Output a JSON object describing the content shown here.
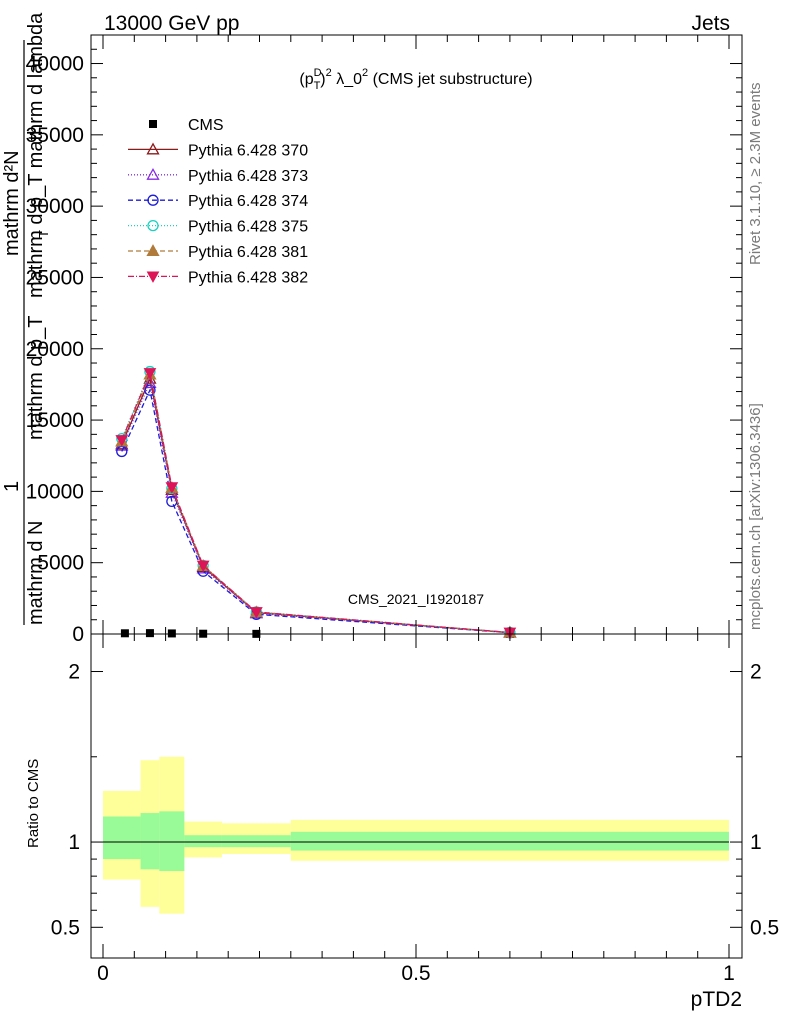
{
  "header": {
    "left": "13000 GeV pp",
    "right": "Jets"
  },
  "side_text": {
    "top": "Rivet 3.1.10, ≥ 2.3M events",
    "bottom": "mcplots.cern.ch [arXiv:1306.3436]"
  },
  "watermark": "CMS_2021_I1920187",
  "chart_data": [
    {
      "type": "line",
      "title": "(p_T^D)^2 λ_0^2 (CMS jet substructure)",
      "title_parts": {
        "a": "(p",
        "sup1": "D",
        "sub1": "T",
        "b": ")",
        "sup2": "2",
        "c": " λ_0",
        "sup3": "2",
        "d": " (CMS jet substructure)"
      },
      "ylabel_lines": [
        "1",
        "mathrm d N",
        "mathrm d p_T"
      ],
      "ylabel_numerator": "mathrm d²N",
      "ylabel_denominator": "mathrm d p_T mathrm d lambda",
      "ylabel_under": "T",
      "xlim": [
        0,
        1
      ],
      "ylim": [
        0,
        42000
      ],
      "yticks": [
        0,
        5000,
        10000,
        15000,
        20000,
        25000,
        30000,
        35000,
        40000
      ],
      "ytick_labels": [
        "0",
        "5000",
        "10000",
        "15000",
        "20000",
        "25000",
        "30000",
        "35000",
        "40000"
      ],
      "grid": false,
      "legend_position": "top-left",
      "series": [
        {
          "name": "CMS",
          "color": "#000000",
          "marker": "square",
          "dash": "none",
          "x": [
            0.035,
            0.075,
            0.11,
            0.16,
            0.245,
            0.65
          ],
          "y": [
            50,
            60,
            40,
            20,
            10,
            1
          ]
        },
        {
          "name": "Pythia 6.428 370",
          "color": "#8b1a1a",
          "marker": "triangle-open",
          "dash": "solid",
          "x": [
            0.03,
            0.075,
            0.11,
            0.16,
            0.245,
            0.65
          ],
          "y": [
            13300,
            17900,
            10100,
            4700,
            1500,
            100
          ]
        },
        {
          "name": "Pythia 6.428 373",
          "color": "#8a2be2",
          "marker": "triangle-open",
          "dash": "1,2",
          "x": [
            0.03,
            0.075,
            0.11,
            0.16,
            0.245,
            0.65
          ],
          "y": [
            13200,
            17600,
            9900,
            4600,
            1450,
            100
          ]
        },
        {
          "name": "Pythia 6.428 374",
          "color": "#1c1cd6",
          "marker": "circle-open",
          "dash": "5,3",
          "x": [
            0.03,
            0.075,
            0.11,
            0.16,
            0.245,
            0.65
          ],
          "y": [
            12800,
            17100,
            9300,
            4400,
            1380,
            90
          ]
        },
        {
          "name": "Pythia 6.428 375",
          "color": "#1ad1c1",
          "marker": "circle-open",
          "dash": "1,2",
          "x": [
            0.03,
            0.075,
            0.11,
            0.16,
            0.245,
            0.65
          ],
          "y": [
            13700,
            18400,
            10200,
            4800,
            1550,
            105
          ]
        },
        {
          "name": "Pythia 6.428 381",
          "color": "#b07a3a",
          "marker": "triangle-filled",
          "dash": "5,3",
          "x": [
            0.03,
            0.075,
            0.11,
            0.16,
            0.245,
            0.65
          ],
          "y": [
            13500,
            18200,
            10250,
            4780,
            1530,
            100
          ]
        },
        {
          "name": "Pythia 6.428 382",
          "color": "#dc1458",
          "marker": "triangle-down-filled",
          "dash": "6,2,1,2",
          "x": [
            0.03,
            0.075,
            0.11,
            0.16,
            0.245,
            0.65
          ],
          "y": [
            13600,
            18300,
            10300,
            4800,
            1540,
            100
          ]
        }
      ]
    },
    {
      "type": "area",
      "title": "",
      "ylabel": "Ratio to CMS",
      "xlabel": "pTD2",
      "xlim": [
        0,
        1
      ],
      "ylim": [
        0.32,
        2.22
      ],
      "yticks": [
        0.5,
        1,
        2
      ],
      "ytick_labels": [
        "0.5",
        "1",
        "2"
      ],
      "xticks": [
        0,
        0.5,
        1
      ],
      "xtick_labels": [
        "0",
        "0.5",
        "1"
      ],
      "reference_line": 1,
      "bands": {
        "x_edges": [
          0.0,
          0.06,
          0.09,
          0.13,
          0.19,
          0.3,
          1.0
        ],
        "stat_low": [
          0.9,
          0.84,
          0.83,
          0.97,
          0.97,
          0.95
        ],
        "stat_high": [
          1.15,
          1.17,
          1.18,
          1.04,
          1.04,
          1.06
        ],
        "total_low": [
          0.78,
          0.62,
          0.58,
          0.91,
          0.93,
          0.89
        ],
        "total_high": [
          1.3,
          1.48,
          1.5,
          1.12,
          1.11,
          1.13
        ],
        "stat_color": "#98fb98",
        "total_color": "#ffff99"
      }
    }
  ]
}
